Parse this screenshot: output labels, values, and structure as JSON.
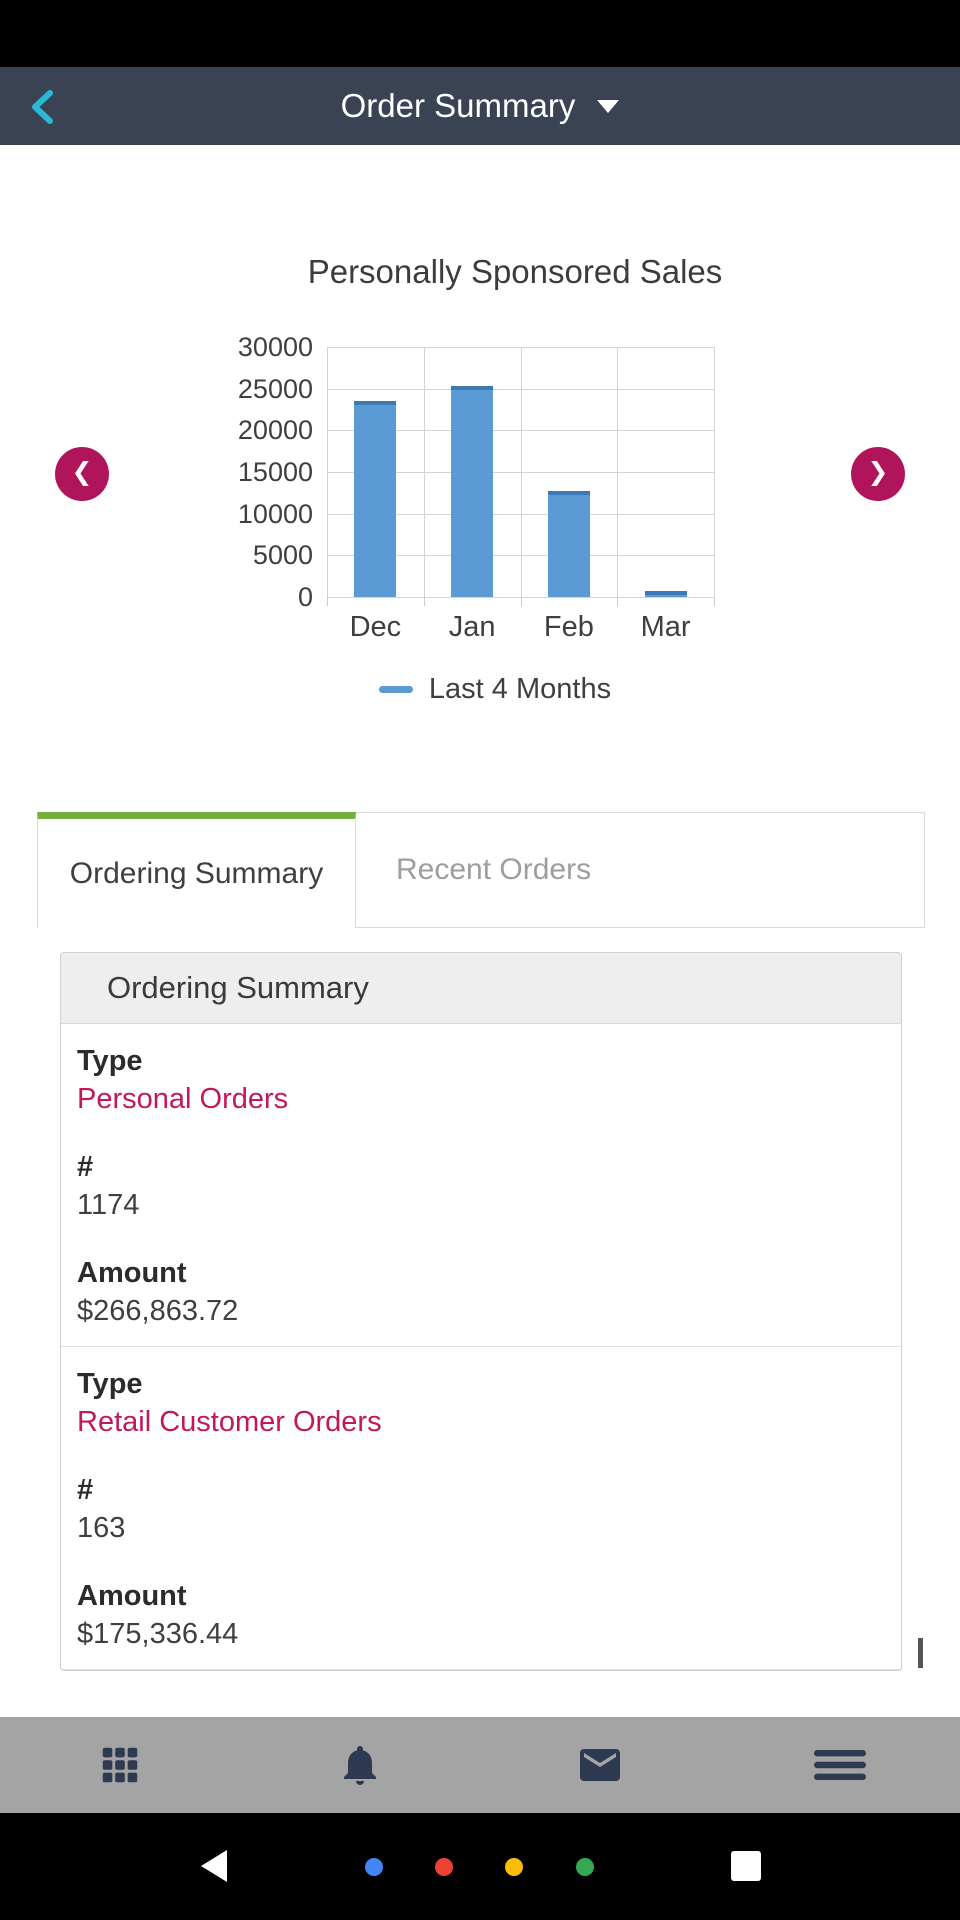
{
  "app": {
    "title": "Order Summary"
  },
  "colors": {
    "app_bar_bg": "#3a4354",
    "back_chevron": "#29b9d6",
    "accent_pink": "#b0155c",
    "link_pink": "#c2185b",
    "tab_active_green": "#76b043",
    "bar_blue": "#5b9bd5",
    "bar_blue_dark": "#3c79b6",
    "toolbar_bg": "#a4a4a4",
    "toolbar_icon": "#2e3a52"
  },
  "chart_data": {
    "type": "bar",
    "title": "Personally Sponsored Sales",
    "categories": [
      "Dec",
      "Jan",
      "Feb",
      "Mar"
    ],
    "series": [
      {
        "name": "Last 4 Months",
        "values": [
          23000,
          24800,
          12300,
          300
        ]
      }
    ],
    "xlabel": "",
    "ylabel": "",
    "ylim": [
      0,
      30000
    ],
    "yticks": [
      0,
      5000,
      10000,
      15000,
      20000,
      25000,
      30000
    ],
    "grid": true,
    "legend_position": "bottom"
  },
  "carousel": {
    "prev_icon": "❮",
    "next_icon": "❯"
  },
  "tabs": [
    {
      "label": "Ordering Summary",
      "active": true
    },
    {
      "label": "Recent Orders",
      "active": false
    }
  ],
  "card": {
    "header": "Ordering Summary",
    "rows": [
      {
        "type_label": "Type",
        "type_value": "Personal Orders",
        "num_label": "#",
        "num_value": "1174",
        "amount_label": "Amount",
        "amount_value": "$266,863.72"
      },
      {
        "type_label": "Type",
        "type_value": "Retail Customer Orders",
        "num_label": "#",
        "num_value": "163",
        "amount_label": "Amount",
        "amount_value": "$175,336.44"
      }
    ]
  },
  "toolbar": {
    "icons": [
      "apps-grid-icon",
      "notifications-bell-icon",
      "messages-envelope-icon",
      "menu-icon"
    ]
  },
  "android_nav": {
    "dot_colors": [
      "#4285f4",
      "#ea4335",
      "#fbbc05",
      "#34a853"
    ]
  }
}
